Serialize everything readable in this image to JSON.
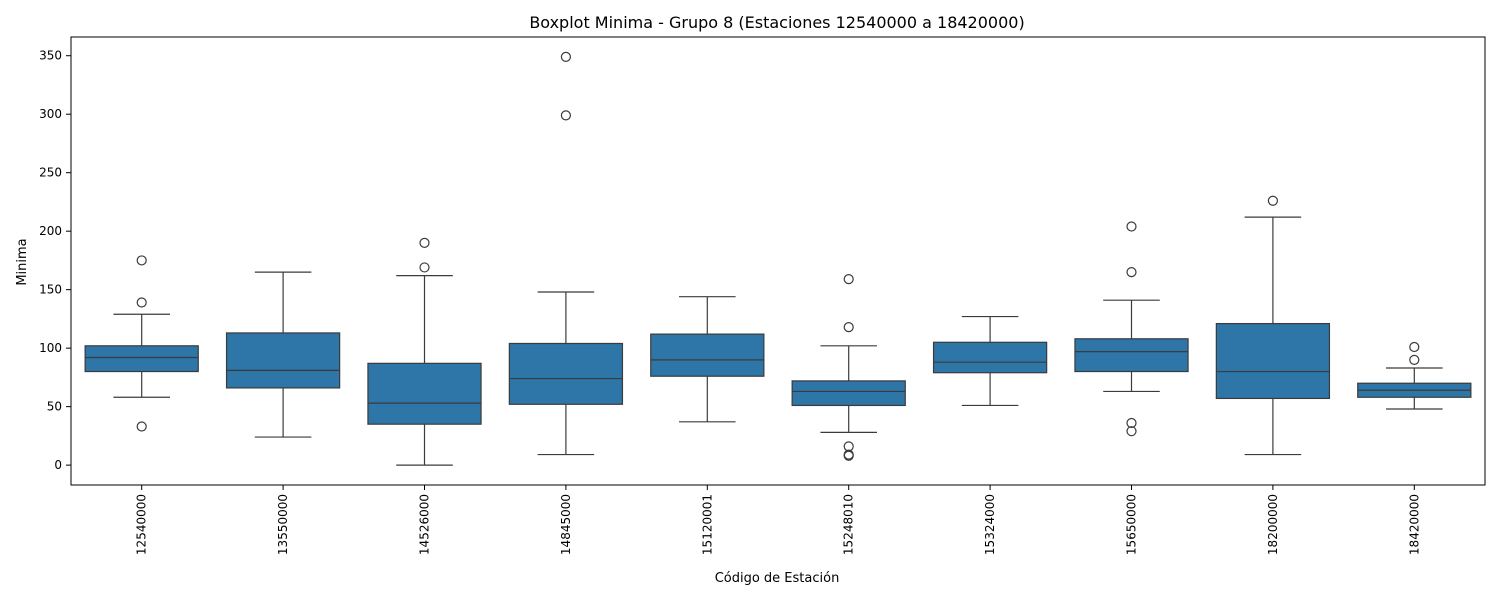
{
  "chart_data": {
    "type": "boxplot",
    "title": "Boxplot Minima - Grupo 8 (Estaciones 12540000 a 18420000)",
    "xlabel": "Código de Estación",
    "ylabel": "Minima",
    "ylim": [
      -17,
      366
    ],
    "yticks": [
      0,
      50,
      100,
      150,
      200,
      250,
      300,
      350
    ],
    "grid": false,
    "box_color": "#2e75a8",
    "line_color": "#3b3b3b",
    "categories": [
      "12540000",
      "13550000",
      "14526000",
      "14845000",
      "15120001",
      "15248010",
      "15324000",
      "15650000",
      "18200000",
      "18420000"
    ],
    "boxes": [
      {
        "station": "12540000",
        "whisker_low": 58,
        "q1": 80,
        "median": 92,
        "q3": 102,
        "whisker_high": 129,
        "outliers": [
          33,
          139,
          175
        ]
      },
      {
        "station": "13550000",
        "whisker_low": 24,
        "q1": 66,
        "median": 81,
        "q3": 113,
        "whisker_high": 165,
        "outliers": []
      },
      {
        "station": "14526000",
        "whisker_low": 0,
        "q1": 35,
        "median": 53,
        "q3": 87,
        "whisker_high": 162,
        "outliers": [
          169,
          190
        ]
      },
      {
        "station": "14845000",
        "whisker_low": 9,
        "q1": 52,
        "median": 74,
        "q3": 104,
        "whisker_high": 148,
        "outliers": [
          299,
          349
        ]
      },
      {
        "station": "15120001",
        "whisker_low": 37,
        "q1": 76,
        "median": 90,
        "q3": 112,
        "whisker_high": 144,
        "outliers": []
      },
      {
        "station": "15248010",
        "whisker_low": 28,
        "q1": 51,
        "median": 63,
        "q3": 72,
        "whisker_high": 102,
        "outliers": [
          8,
          9,
          16,
          118,
          159
        ]
      },
      {
        "station": "15324000",
        "whisker_low": 51,
        "q1": 79,
        "median": 88,
        "q3": 105,
        "whisker_high": 127,
        "outliers": []
      },
      {
        "station": "15650000",
        "whisker_low": 63,
        "q1": 80,
        "median": 97,
        "q3": 108,
        "whisker_high": 141,
        "outliers": [
          29,
          36,
          165,
          204
        ]
      },
      {
        "station": "18200000",
        "whisker_low": 9,
        "q1": 57,
        "median": 80,
        "q3": 121,
        "whisker_high": 212,
        "outliers": [
          226
        ]
      },
      {
        "station": "18420000",
        "whisker_low": 48,
        "q1": 58,
        "median": 64,
        "q3": 70,
        "whisker_high": 83,
        "outliers": [
          90,
          101
        ]
      }
    ]
  }
}
